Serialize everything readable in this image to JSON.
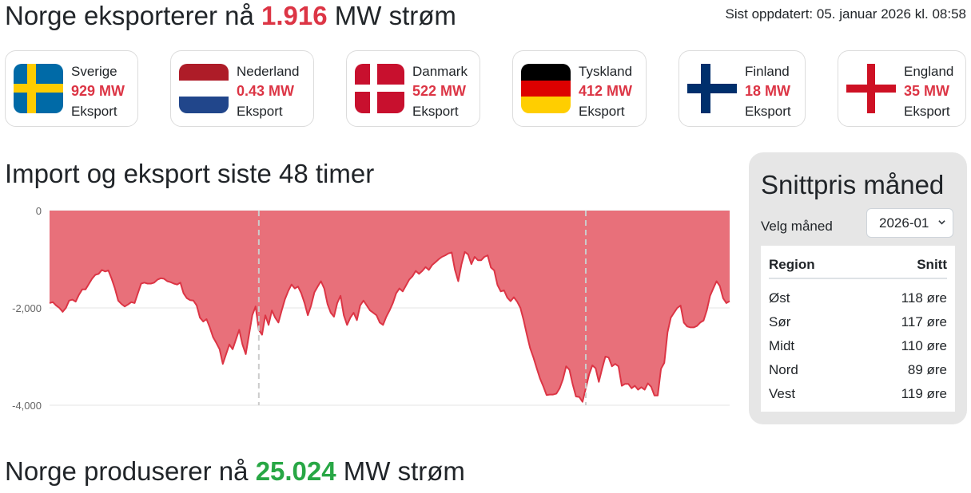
{
  "header": {
    "title_prefix": "Norge eksporterer nå",
    "title_value": "1.916",
    "title_suffix": "MW strøm",
    "updated": "Sist oppdatert: 05. januar 2026 kl. 08:58"
  },
  "countries": [
    {
      "name": "Sverige",
      "value": "929 MW",
      "status": "Eksport",
      "flag": "sweden-flag-icon"
    },
    {
      "name": "Nederland",
      "value": "0.43 MW",
      "status": "Eksport",
      "flag": "netherlands-flag-icon"
    },
    {
      "name": "Danmark",
      "value": "522 MW",
      "status": "Eksport",
      "flag": "denmark-flag-icon"
    },
    {
      "name": "Tyskland",
      "value": "412 MW",
      "status": "Eksport",
      "flag": "germany-flag-icon"
    },
    {
      "name": "Finland",
      "value": "18 MW",
      "status": "Eksport",
      "flag": "finland-flag-icon"
    },
    {
      "name": "England",
      "value": "35 MW",
      "status": "Eksport",
      "flag": "england-flag-icon"
    }
  ],
  "chart_section": {
    "title": "Import og eksport siste 48 timer"
  },
  "chart_data": {
    "type": "area",
    "title": "Import og eksport siste 48 timer",
    "xlabel": "",
    "ylabel": "",
    "ylim": [
      -4000,
      0
    ],
    "yticks": [
      0,
      -2000,
      -4000
    ],
    "ytick_labels": [
      "0",
      "-2,000",
      "-4,000"
    ],
    "grid": true,
    "fill_color": "#e8707a",
    "line_color": "#dc3545",
    "marker_color": "#cccccc",
    "markers_at_index": [
      64,
      164
    ],
    "values": [
      -1900,
      -1880,
      -1950,
      -2000,
      -2080,
      -2000,
      -1850,
      -1830,
      -1870,
      -1730,
      -1620,
      -1620,
      -1510,
      -1400,
      -1320,
      -1300,
      -1220,
      -1250,
      -1230,
      -1400,
      -1600,
      -1850,
      -1920,
      -1970,
      -1930,
      -1880,
      -1900,
      -1700,
      -1500,
      -1480,
      -1500,
      -1500,
      -1480,
      -1420,
      -1390,
      -1400,
      -1450,
      -1470,
      -1500,
      -1520,
      -1480,
      -1700,
      -1800,
      -1840,
      -1850,
      -1950,
      -2200,
      -2280,
      -2230,
      -2400,
      -2600,
      -2720,
      -2850,
      -3150,
      -2950,
      -2750,
      -2850,
      -2650,
      -2450,
      -2750,
      -2950,
      -2550,
      -2150,
      -1970,
      -2450,
      -2550,
      -2150,
      -2350,
      -2050,
      -2200,
      -2300,
      -2050,
      -1820,
      -1650,
      -1520,
      -1600,
      -1560,
      -1700,
      -1900,
      -2150,
      -1950,
      -1680,
      -1560,
      -1450,
      -1600,
      -1920,
      -2100,
      -2180,
      -1900,
      -1750,
      -2150,
      -2350,
      -2200,
      -2100,
      -2250,
      -1950,
      -1850,
      -1950,
      -2050,
      -2100,
      -2150,
      -2300,
      -2350,
      -2180,
      -2050,
      -1900,
      -1700,
      -1600,
      -1660,
      -1540,
      -1420,
      -1350,
      -1240,
      -1300,
      -1240,
      -1160,
      -1220,
      -1120,
      -1060,
      -1000,
      -950,
      -920,
      -880,
      -860,
      -1220,
      -1450,
      -1100,
      -850,
      -900,
      -1100,
      -950,
      -1020,
      -1020,
      -950,
      -920,
      -1170,
      -1230,
      -1530,
      -1660,
      -1640,
      -1790,
      -1860,
      -1780,
      -1870,
      -2000,
      -2250,
      -2550,
      -2830,
      -3020,
      -3240,
      -3450,
      -3610,
      -3790,
      -3780,
      -3780,
      -3760,
      -3650,
      -3470,
      -3200,
      -3270,
      -3570,
      -3820,
      -3830,
      -3930,
      -3650,
      -3370,
      -3180,
      -3240,
      -3520,
      -3250,
      -3000,
      -3020,
      -3200,
      -3150,
      -3200,
      -3600,
      -3560,
      -3560,
      -3650,
      -3600,
      -3680,
      -3630,
      -3680,
      -3550,
      -3620,
      -3800,
      -3800,
      -3250,
      -3130,
      -2500,
      -2200,
      -2100,
      -2000,
      -1950,
      -2300,
      -2380,
      -2400,
      -2400,
      -2370,
      -2300,
      -2260,
      -2050,
      -1750,
      -1600,
      -1450,
      -1550,
      -1800,
      -1900,
      -1860
    ],
    "series": [
      {
        "values": "values"
      }
    ]
  },
  "price": {
    "title": "Snittpris måned",
    "month_label": "Velg måned",
    "month_value": "2026-01",
    "columns": [
      "Region",
      "Snitt"
    ],
    "rows": [
      {
        "region": "Øst",
        "value": "118 øre"
      },
      {
        "region": "Sør",
        "value": "117 øre"
      },
      {
        "region": "Midt",
        "value": "110 øre"
      },
      {
        "region": "Nord",
        "value": "89 øre"
      },
      {
        "region": "Vest",
        "value": "119 øre"
      }
    ]
  },
  "production": {
    "title_prefix": "Norge produserer nå",
    "title_value": "25.024",
    "title_suffix": "MW strøm"
  }
}
